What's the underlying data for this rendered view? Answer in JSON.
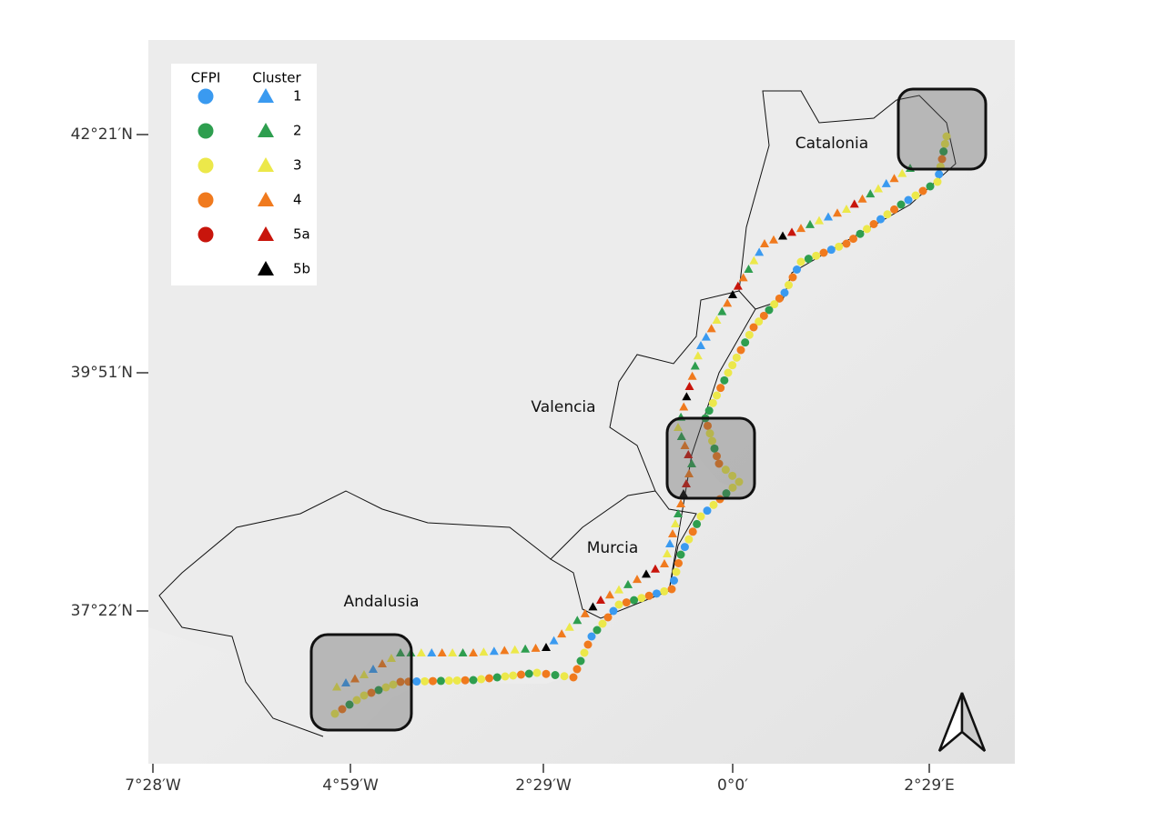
{
  "legend": {
    "headers": [
      "CFPI",
      "Cluster"
    ],
    "items": [
      {
        "label": "1",
        "color": "#3a9af0",
        "cfpi": true
      },
      {
        "label": "2",
        "color": "#2e9e4f",
        "cfpi": true
      },
      {
        "label": "3",
        "color": "#ece84a",
        "cfpi": true
      },
      {
        "label": "4",
        "color": "#f07a1e",
        "cfpi": true
      },
      {
        "label": "5a",
        "color": "#c8150c",
        "cfpi": true
      },
      {
        "label": "5b",
        "color": "#000000",
        "cfpi": false
      }
    ]
  },
  "regions": [
    "Catalonia",
    "Valencia",
    "Murcia",
    "Andalusia"
  ],
  "axes": {
    "y_labels": [
      "42°21′N",
      "39°51′N",
      "37°22′N"
    ],
    "x_labels": [
      "7°28′W",
      "4°59′W",
      "2°29′W",
      "0°0′",
      "2°29′E"
    ]
  }
}
